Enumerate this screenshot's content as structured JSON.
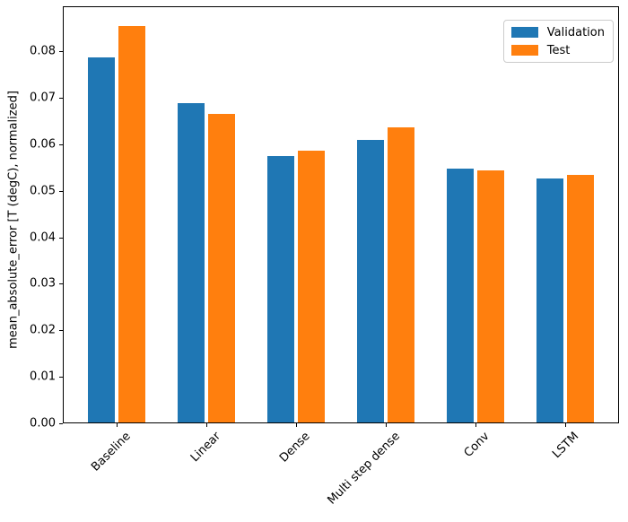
{
  "figure": {
    "background": "#ffffff",
    "spine_color": "#000000"
  },
  "chart_data": {
    "type": "bar",
    "title": "",
    "xlabel": "",
    "ylabel": "mean_absolute_error [T (degC), normalized]",
    "categories": [
      "Baseline",
      "Linear",
      "Dense",
      "Multi step dense",
      "Conv",
      "LSTM"
    ],
    "series": [
      {
        "name": "Validation",
        "color": "#1f77b4",
        "values": [
          0.0785,
          0.0687,
          0.0572,
          0.0607,
          0.0545,
          0.0524
        ]
      },
      {
        "name": "Test",
        "color": "#ff7f0e",
        "values": [
          0.0853,
          0.0664,
          0.0584,
          0.0634,
          0.0543,
          0.0533
        ]
      }
    ],
    "ylim": [
      0,
      0.0897
    ],
    "yticks": [
      0,
      0.01,
      0.02,
      0.03,
      0.04,
      0.05,
      0.06,
      0.07,
      0.08
    ],
    "ytick_labels": [
      "0.00",
      "0.01",
      "0.02",
      "0.03",
      "0.04",
      "0.05",
      "0.06",
      "0.07",
      "0.08"
    ],
    "x_label_rotation_deg": 45,
    "grid": false,
    "legend": {
      "position": "upper right",
      "entries": [
        "Validation",
        "Test"
      ]
    }
  }
}
